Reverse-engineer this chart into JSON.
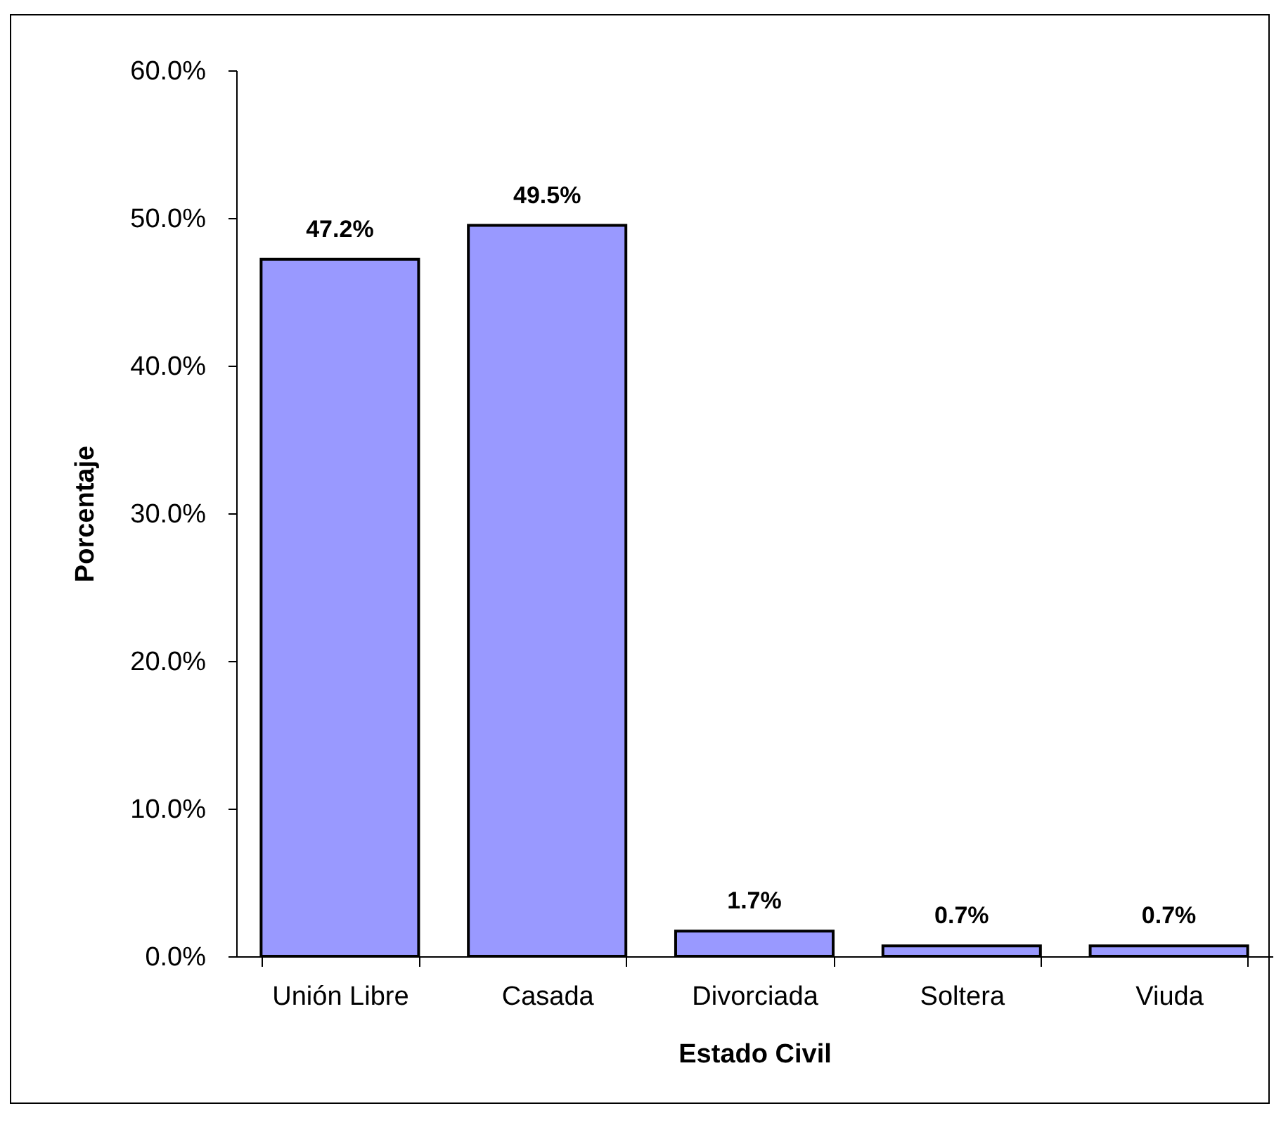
{
  "chart_data": {
    "type": "bar",
    "xlabel": "Estado Civil",
    "ylabel": "Porcentaje",
    "categories": [
      "Unión Libre",
      "Casada",
      "Divorciada",
      "Soltera",
      "Viuda"
    ],
    "values": [
      47.2,
      49.5,
      1.7,
      0.7,
      0.7
    ],
    "value_labels": [
      "47.2%",
      "49.5%",
      "1.7%",
      "0.7%",
      "0.7%"
    ],
    "color": "#9999ff",
    "ylim": [
      0,
      60
    ],
    "yticks": [
      {
        "value": 0,
        "label": "0.0%"
      },
      {
        "value": 10,
        "label": "10.0%"
      },
      {
        "value": 20,
        "label": "20.0%"
      },
      {
        "value": 30,
        "label": "30.0%"
      },
      {
        "value": 40,
        "label": "40.0%"
      },
      {
        "value": 50,
        "label": "50.0%"
      },
      {
        "value": 60,
        "label": "60.0%"
      }
    ]
  }
}
